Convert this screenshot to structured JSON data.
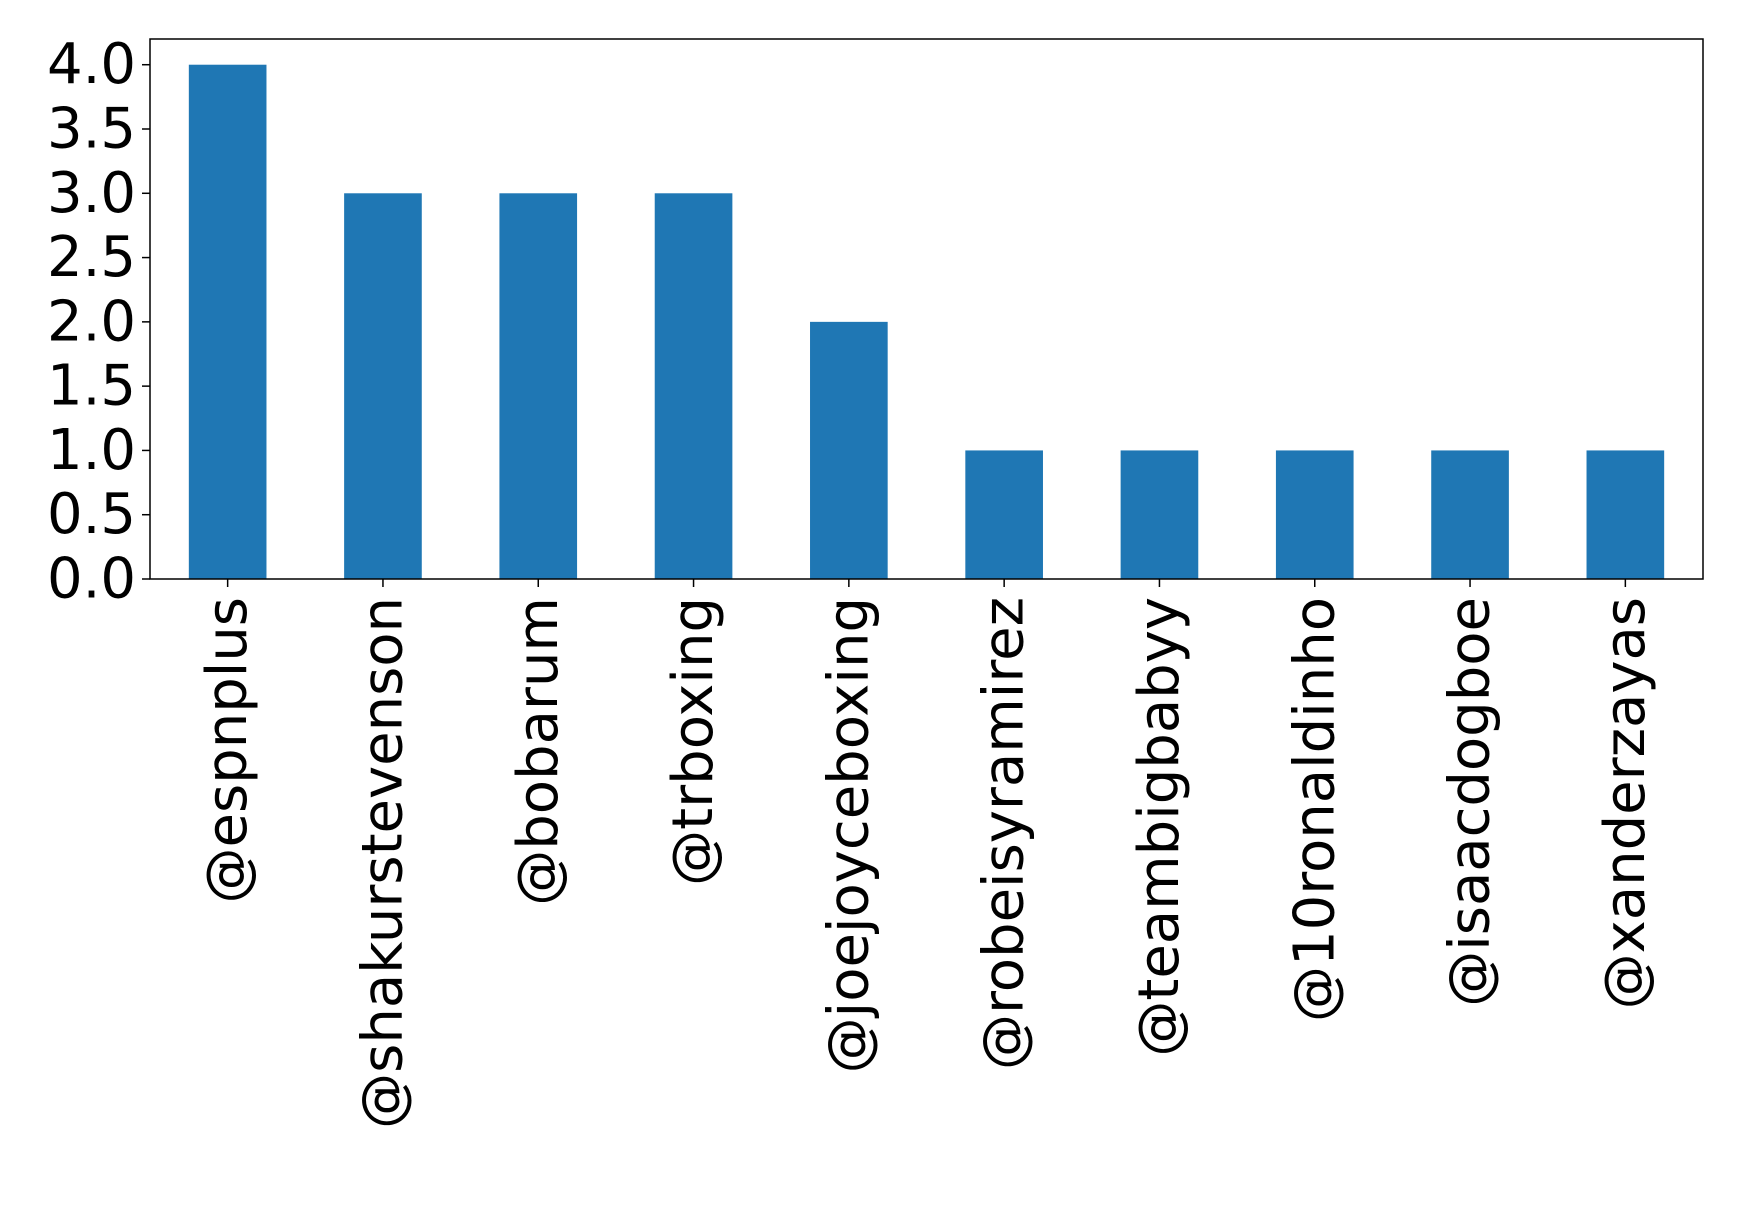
{
  "chart_data": {
    "type": "bar",
    "title": "",
    "xlabel": "",
    "ylabel": "",
    "categories": [
      "@espnplus",
      "@shakurstevenson",
      "@bobarum",
      "@trboxing",
      "@joejoyceboxing",
      "@robeisyramirez",
      "@teambigbabyy",
      "@10ronaldinho",
      "@isaacdogboe",
      "@xanderzayas"
    ],
    "values": [
      4,
      3,
      3,
      3,
      2,
      1,
      1,
      1,
      1,
      1
    ],
    "ylim": [
      0,
      4.2
    ],
    "yticks": [
      "0.0",
      "0.5",
      "1.0",
      "1.5",
      "2.0",
      "2.5",
      "3.0",
      "3.5",
      "4.0"
    ],
    "grid": false,
    "legend": "none",
    "bar_color": "#1f77b4"
  }
}
